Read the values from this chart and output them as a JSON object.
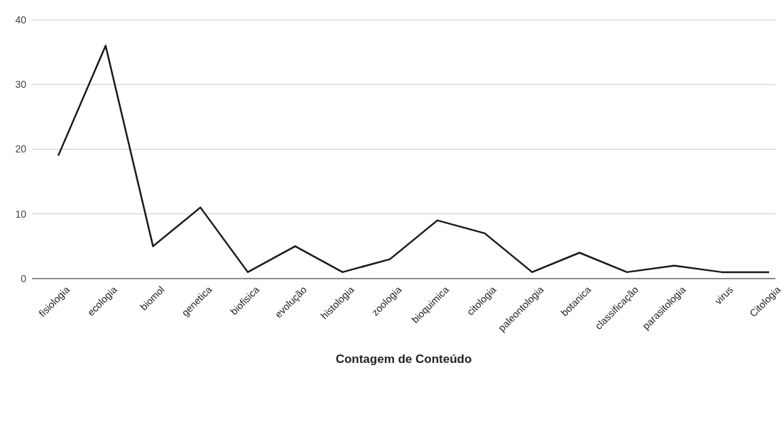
{
  "chart_data": {
    "type": "line",
    "xlabel": "Contagem de Conteúdo",
    "categories": [
      "fisiologia",
      "ecologia",
      "biomol",
      "genetica",
      "biofisica",
      "evolução",
      "histologia",
      "zoologia",
      "bioquimica",
      "citologia",
      "paleontologia",
      "botanica",
      "classificação",
      "parasitologia",
      "virus",
      "Citologia"
    ],
    "series": [
      {
        "color": "#1a1a1a",
        "values": [
          19,
          36,
          5,
          11,
          1,
          5,
          1,
          3,
          9,
          7,
          1,
          4,
          1,
          2,
          1,
          1
        ]
      }
    ],
    "ylim": [
      0,
      40
    ],
    "yticks": [
      0,
      10,
      20,
      30,
      40
    ],
    "grid": "y",
    "marker": "none",
    "line_style": "solid"
  }
}
